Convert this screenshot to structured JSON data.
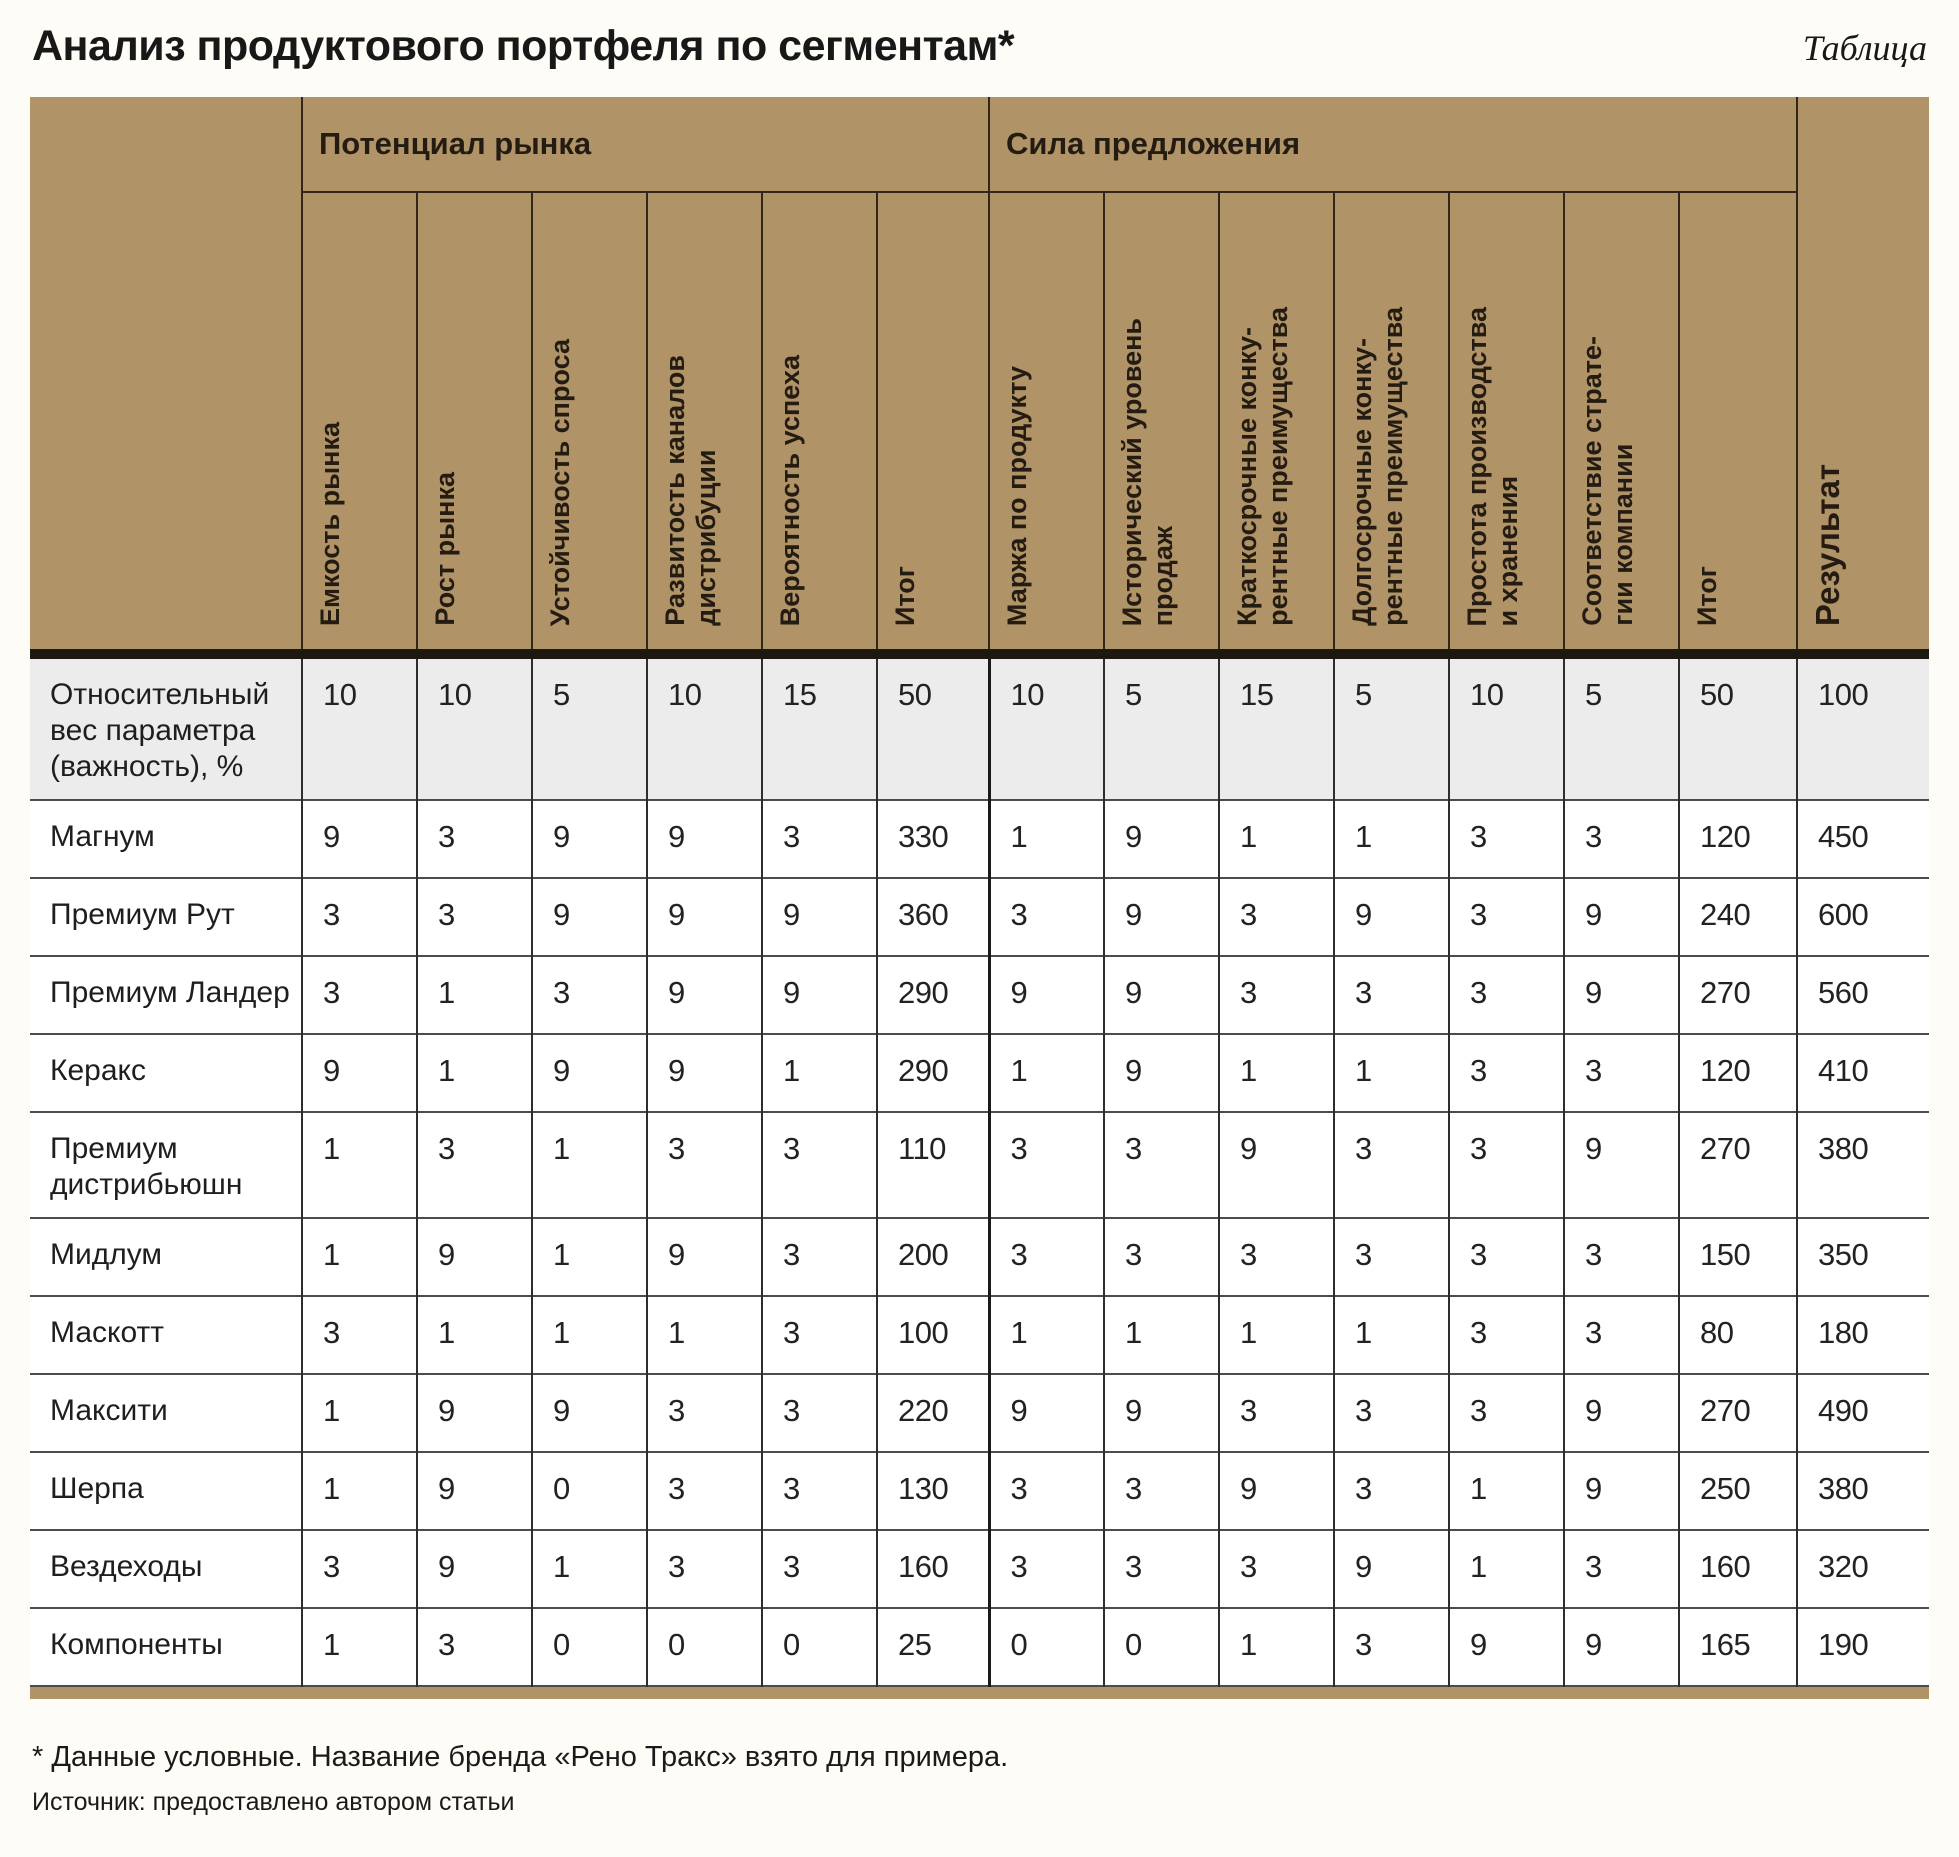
{
  "title": "Анализ продуктового портфеля по сегментам*",
  "table_label": "Таблица",
  "table": {
    "group_headers": [
      {
        "label": "Потенциал рынка",
        "colspan": 6
      },
      {
        "label": "Сила предложения",
        "colspan": 7
      }
    ],
    "result_header": "Результат",
    "columns": [
      "Емкость рынка",
      "Рост рынка",
      "Устойчивость спроса",
      "Развитость каналов\nдистрибуции",
      "Вероятность успеха",
      "Итог",
      "Маржа по продукту",
      "Исторический уровень\nпродаж",
      "Краткосрочные конку-\nрентные преимущества",
      "Долгосрочные конку-\nрентные преимущества",
      "Простота производства\nи хранения",
      "Соответствие страте-\nгии компании",
      "Итог"
    ],
    "weights_row": {
      "label": "Относительный вес параметра (важность), %",
      "values": [
        10,
        10,
        5,
        10,
        15,
        50,
        10,
        5,
        15,
        5,
        10,
        5,
        50,
        100
      ]
    },
    "rows": [
      {
        "label": "Магнум",
        "values": [
          9,
          3,
          9,
          9,
          3,
          330,
          1,
          9,
          1,
          1,
          3,
          3,
          120,
          450
        ]
      },
      {
        "label": "Премиум Рут",
        "values": [
          3,
          3,
          9,
          9,
          9,
          360,
          3,
          9,
          3,
          9,
          3,
          9,
          240,
          600
        ]
      },
      {
        "label": "Премиум Ландер",
        "values": [
          3,
          1,
          3,
          9,
          9,
          290,
          9,
          9,
          3,
          3,
          3,
          9,
          270,
          560
        ]
      },
      {
        "label": "Керакс",
        "values": [
          9,
          1,
          9,
          9,
          1,
          290,
          1,
          9,
          1,
          1,
          3,
          3,
          120,
          410
        ]
      },
      {
        "label": "Премиум дистрибьюшн",
        "values": [
          1,
          3,
          1,
          3,
          3,
          110,
          3,
          3,
          9,
          3,
          3,
          9,
          270,
          380
        ]
      },
      {
        "label": "Мидлум",
        "values": [
          1,
          9,
          1,
          9,
          3,
          200,
          3,
          3,
          3,
          3,
          3,
          3,
          150,
          350
        ]
      },
      {
        "label": "Маскотт",
        "values": [
          3,
          1,
          1,
          1,
          3,
          100,
          1,
          1,
          1,
          1,
          3,
          3,
          80,
          180
        ]
      },
      {
        "label": "Максити",
        "values": [
          1,
          9,
          9,
          3,
          3,
          220,
          9,
          9,
          3,
          3,
          3,
          9,
          270,
          490
        ]
      },
      {
        "label": "Шерпа",
        "values": [
          1,
          9,
          0,
          3,
          3,
          130,
          3,
          3,
          9,
          3,
          1,
          9,
          250,
          380
        ]
      },
      {
        "label": "Вездеходы",
        "values": [
          3,
          9,
          1,
          3,
          3,
          160,
          3,
          3,
          3,
          9,
          1,
          3,
          160,
          320
        ]
      },
      {
        "label": "Компоненты",
        "values": [
          1,
          3,
          0,
          0,
          0,
          25,
          0,
          0,
          1,
          3,
          9,
          9,
          165,
          190
        ]
      }
    ]
  },
  "footnotes": [
    "* Данные условные. Название бренда «Рено Тракс» взято для примера.",
    "Источник: предоставлено автором статьи"
  ],
  "colors": {
    "header_bg": "#b09366",
    "weights_row_bg": "#ececec",
    "heavy_rule": "#1d1812"
  }
}
